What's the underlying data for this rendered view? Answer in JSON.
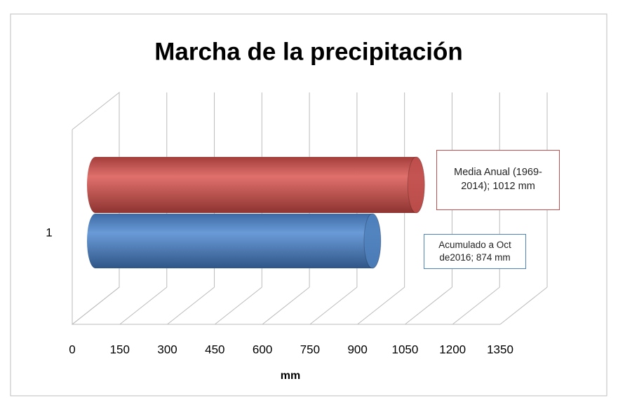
{
  "chart_data": {
    "type": "bar3d",
    "orientation": "horizontal",
    "title": "Marcha de la precipitación",
    "categories": [
      "1"
    ],
    "series": [
      {
        "color": "#c0504d",
        "values": [
          1012
        ],
        "value_labels": [
          "Media Anual (1969-2014); 1012 mm"
        ]
      },
      {
        "color": "#4f81bd",
        "values": [
          874
        ],
        "value_labels": [
          "Acumulado a Oct de2016; 874 mm"
        ]
      }
    ],
    "xlabel": "mm",
    "xlim": [
      0,
      1350
    ],
    "xticks": [
      0,
      150,
      300,
      450,
      600,
      750,
      900,
      1050,
      1200,
      1350
    ],
    "grid": true
  }
}
